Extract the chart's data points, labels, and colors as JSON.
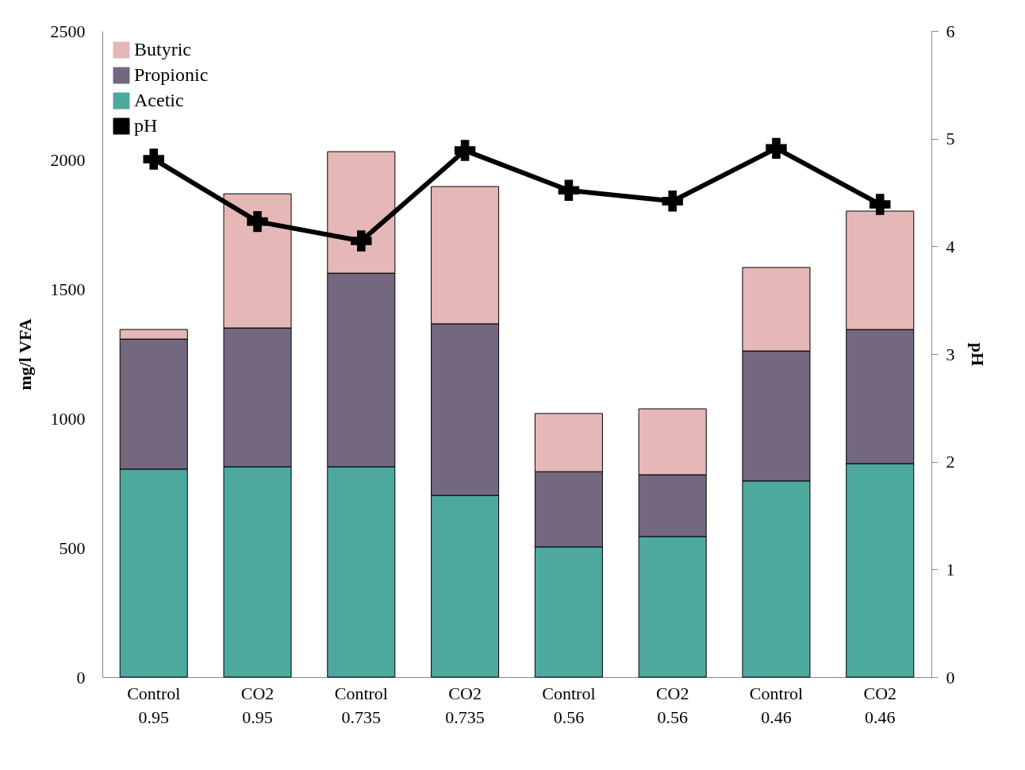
{
  "chart_data": {
    "type": "bar",
    "stacked": true,
    "ylabel": "mg/l VFA",
    "y2label": "pH",
    "categories": [
      "Control 0.95",
      "CO2 0.95",
      "Control 0.735",
      "CO2 0.735",
      "Control 0.56",
      "CO2 0.56",
      "Control 0.46",
      "CO2 0.46"
    ],
    "series": [
      {
        "name": "Acetic",
        "color": "#4da99d",
        "values": [
          805,
          814,
          814,
          703,
          504,
          544,
          759,
          826
        ]
      },
      {
        "name": "Propionic",
        "color": "#736880",
        "values": [
          503,
          537,
          749,
          664,
          291,
          239,
          503,
          519
        ]
      },
      {
        "name": "Butyric",
        "color": "#e5b8b7",
        "values": [
          37,
          519,
          470,
          531,
          225,
          255,
          323,
          458
        ]
      },
      {
        "name": "pH",
        "type": "line",
        "axis": "y2",
        "color": "#000000",
        "marker": "cross",
        "values": [
          4.81,
          4.23,
          4.05,
          4.89,
          4.52,
          4.42,
          4.91,
          4.39
        ]
      }
    ],
    "ylim": [
      0,
      2500
    ],
    "yticks": [
      0,
      500,
      1000,
      1500,
      2000,
      2500
    ],
    "y2lim": [
      0,
      6
    ],
    "y2ticks": [
      0,
      1,
      2,
      3,
      4,
      5,
      6
    ],
    "grid": false,
    "legend": "top left"
  }
}
